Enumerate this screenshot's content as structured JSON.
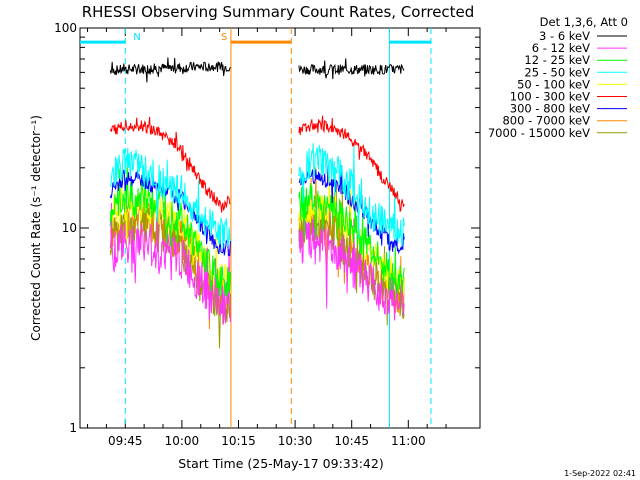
{
  "chart_data": {
    "type": "line",
    "title": "RHESSI Observing Summary Count Rates, Corrected",
    "xlabel": "Start Time (25-May-17 09:33:42)",
    "ylabel": "Corrected Count Rate (s⁻¹ detector⁻¹)",
    "yscale": "log",
    "ylim": [
      1,
      100
    ],
    "xlim_min": [
      -12,
      94
    ],
    "xtick_labels": [
      "09:45",
      "10:00",
      "10:15",
      "10:30",
      "10:45",
      "11:00"
    ],
    "xtick_minutes": [
      0,
      15,
      30,
      45,
      60,
      75
    ],
    "ytick_labels": [
      "1",
      "10",
      "100"
    ],
    "ytick_values": [
      1,
      10,
      100
    ],
    "legend_title": "Det 1,3,6, Att 0",
    "legend_position": "right-outside",
    "data_gap_minutes": [
      28,
      46
    ],
    "series": [
      {
        "name": "3 - 6 keV",
        "color": "#000000",
        "x": [
          -4,
          0,
          10,
          20,
          28,
          46,
          54,
          62,
          70,
          74
        ],
        "y": [
          61,
          62,
          63,
          64,
          64,
          62,
          62,
          62,
          62,
          62
        ]
      },
      {
        "name": "6 - 12 keV",
        "color": "#ff33ff",
        "x": [
          -4,
          0,
          5,
          10,
          15,
          20,
          25,
          28,
          46,
          50,
          55,
          60,
          65,
          70,
          74
        ],
        "y": [
          7.5,
          8.5,
          8.4,
          7.8,
          7.0,
          5.2,
          4.2,
          4.2,
          8.3,
          8.8,
          7.8,
          6.5,
          5.3,
          4.5,
          4.2
        ]
      },
      {
        "name": "12 - 25 keV",
        "color": "#00ff00",
        "x": [
          -4,
          0,
          5,
          10,
          15,
          20,
          25,
          28,
          46,
          50,
          55,
          60,
          65,
          70,
          74
        ],
        "y": [
          12,
          14,
          14,
          13,
          11,
          7.5,
          5.5,
          5.2,
          13,
          14,
          12.5,
          10,
          8,
          6,
          5.2
        ]
      },
      {
        "name": "25 - 50 keV",
        "color": "#00ffff",
        "x": [
          -4,
          0,
          5,
          10,
          15,
          20,
          25,
          28,
          46,
          50,
          55,
          60,
          65,
          70,
          74
        ],
        "y": [
          17,
          22,
          19,
          17,
          15,
          11,
          9.5,
          9.5,
          19,
          22,
          20,
          16,
          12,
          10,
          9.5
        ]
      },
      {
        "name": "50 - 100 keV",
        "color": "#ffff00",
        "x": [
          -4,
          0,
          5,
          10,
          15,
          20,
          25,
          28,
          46,
          50,
          55,
          60,
          65,
          70,
          74
        ],
        "y": [
          11,
          13,
          13,
          12,
          10.5,
          7.5,
          5.8,
          5.5,
          12,
          13,
          12,
          9.5,
          7.5,
          6,
          5.5
        ]
      },
      {
        "name": "100 - 300 keV",
        "color": "#ff0000",
        "x": [
          -4,
          0,
          5,
          10,
          15,
          20,
          25,
          28,
          46,
          50,
          55,
          60,
          65,
          70,
          74
        ],
        "y": [
          30,
          33,
          32,
          29,
          25,
          17,
          13,
          13.5,
          31,
          33,
          32,
          28,
          22,
          16,
          13
        ]
      },
      {
        "name": "300 - 800 keV",
        "color": "#0000ff",
        "x": [
          -4,
          0,
          5,
          10,
          15,
          20,
          25,
          28,
          46,
          50,
          55,
          60,
          65,
          70,
          74
        ],
        "y": [
          15,
          18,
          17,
          16,
          14,
          10.5,
          8,
          8,
          17,
          18,
          17,
          14,
          11,
          8.5,
          8
        ]
      },
      {
        "name": "800 - 7000 keV",
        "color": "#ff8800",
        "x": [
          -4,
          0,
          5,
          10,
          15,
          20,
          25,
          28,
          46,
          50,
          55,
          60,
          65,
          70,
          74
        ],
        "y": [
          9.5,
          11,
          11,
          10,
          8.5,
          6.2,
          4.6,
          4.5,
          10.5,
          11,
          10,
          8,
          6.2,
          5,
          4.5
        ]
      },
      {
        "name": "7000 - 15000 keV",
        "color": "#999900",
        "x": [
          -4,
          0,
          5,
          10,
          15,
          20,
          25,
          28,
          46,
          50,
          55,
          60,
          65,
          70,
          74
        ],
        "y": [
          9,
          10.5,
          10.3,
          9.5,
          8,
          5.8,
          4.3,
          4.2,
          10,
          10.5,
          9.5,
          7.5,
          5.8,
          4.7,
          4.2
        ]
      }
    ],
    "annotations": [
      {
        "label": "N",
        "kind": "night",
        "color": "#00e5ff",
        "x_start": -12,
        "x_end": 0,
        "boundary": "dashed-at-end"
      },
      {
        "label": "",
        "kind": "night",
        "color": "#00e5ff",
        "x_start": 70,
        "x_end": 81,
        "boundary": "solid-start-dashed-end"
      },
      {
        "label": "S",
        "kind": "saa",
        "color": "#ff8800",
        "x_start": 28,
        "x_end": 44
      }
    ]
  },
  "footer_date": "1-Sep-2022 02:41"
}
